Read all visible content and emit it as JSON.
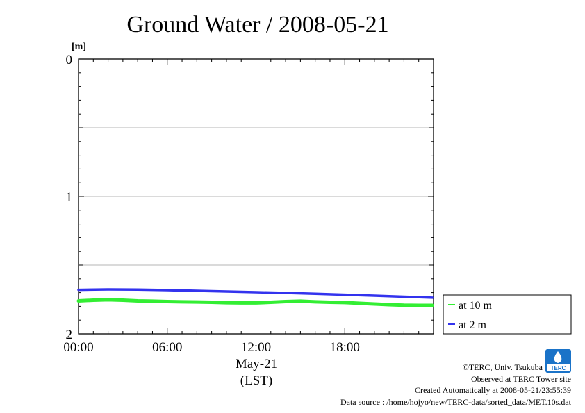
{
  "chart_data": {
    "type": "line",
    "title": "Ground Water / 2008-05-21",
    "ylabel": "[m]",
    "yaxis_inverted": true,
    "ylim": [
      0,
      2
    ],
    "yticks": [
      {
        "value": 0,
        "label": "0"
      },
      {
        "value": 1,
        "label": "1"
      },
      {
        "value": 2,
        "label": "2"
      }
    ],
    "ygrid_values": [
      0.5,
      1,
      1.5
    ],
    "xlim": [
      0,
      1440
    ],
    "xunit": "minutes since 00:00",
    "xticks": [
      {
        "value": 0,
        "label": "00:00"
      },
      {
        "value": 360,
        "label": "06:00"
      },
      {
        "value": 720,
        "label": "12:00"
      },
      {
        "value": 1080,
        "label": "18:00"
      }
    ],
    "xlabel_date": "May-21",
    "xlabel_tz": "(LST)",
    "grid": "horizontal",
    "legend_position": "right",
    "series": [
      {
        "name": "at 10 m",
        "color": "#33ee33",
        "points": [
          [
            0,
            1.76
          ],
          [
            60,
            1.755
          ],
          [
            120,
            1.752
          ],
          [
            180,
            1.755
          ],
          [
            240,
            1.76
          ],
          [
            300,
            1.762
          ],
          [
            360,
            1.765
          ],
          [
            420,
            1.767
          ],
          [
            480,
            1.768
          ],
          [
            540,
            1.77
          ],
          [
            600,
            1.773
          ],
          [
            660,
            1.775
          ],
          [
            720,
            1.775
          ],
          [
            780,
            1.77
          ],
          [
            840,
            1.765
          ],
          [
            900,
            1.762
          ],
          [
            960,
            1.767
          ],
          [
            1020,
            1.77
          ],
          [
            1080,
            1.772
          ],
          [
            1140,
            1.778
          ],
          [
            1200,
            1.783
          ],
          [
            1260,
            1.788
          ],
          [
            1320,
            1.792
          ],
          [
            1380,
            1.793
          ],
          [
            1435,
            1.793
          ]
        ]
      },
      {
        "name": "at 2 m",
        "color": "#3333ee",
        "points": [
          [
            0,
            1.68
          ],
          [
            120,
            1.677
          ],
          [
            240,
            1.678
          ],
          [
            360,
            1.682
          ],
          [
            480,
            1.687
          ],
          [
            600,
            1.692
          ],
          [
            720,
            1.697
          ],
          [
            840,
            1.702
          ],
          [
            960,
            1.708
          ],
          [
            1080,
            1.715
          ],
          [
            1200,
            1.722
          ],
          [
            1320,
            1.73
          ],
          [
            1435,
            1.737
          ]
        ]
      }
    ]
  },
  "credits": {
    "copyright": "©TERC, Univ. Tsukuba",
    "observed": "Observed at TERC Tower site",
    "created": "Created Automatically at 2008-05-21/23:55:39",
    "source": "Data source : /home/hojyo/new/TERC-data/sorted_data/MET.10s.dat"
  }
}
